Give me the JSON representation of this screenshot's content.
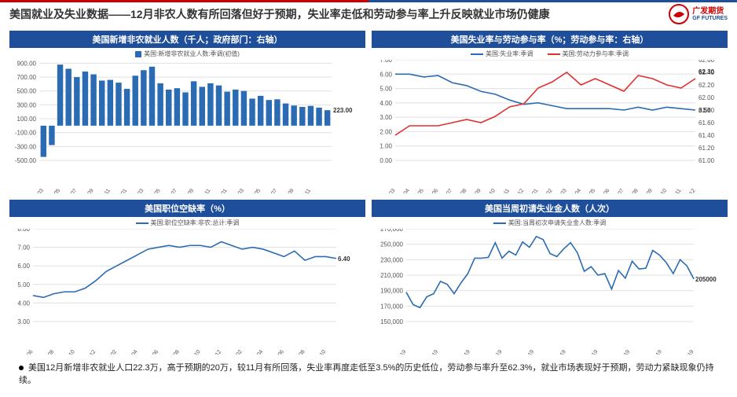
{
  "header": {
    "title": "美国就业及失业数据——12月非农人数有所回落但好于预期，失业率走低和劳动参与率上升反映就业市场仍健康",
    "logo_cn": "广发期货",
    "logo_en": "GF FUTURES"
  },
  "colors": {
    "accent_red": "#c00000",
    "accent_blue": "#1f4e9b",
    "series_blue": "#2b6bb3",
    "series_red": "#e03030",
    "grid": "#e0e0e0",
    "bg": "#ffffff"
  },
  "chart1": {
    "title": "美国新增非农就业人数（千人；政府部门：右轴）",
    "type": "bar",
    "legend": "美国:新增非农就业人数:季调(初值)",
    "ylim": [
      -500,
      950
    ],
    "ytick_step": 200,
    "categories": [
      "2020-03",
      "2020-05",
      "2020-07",
      "2020-09",
      "2020-11",
      "2021-01",
      "2021-03",
      "2021-05",
      "2021-07",
      "2021-09",
      "2021-11",
      "2022-01",
      "2022-03",
      "2022-05",
      "2022-07",
      "2022-09",
      "2022-11"
    ],
    "xshow": [
      0,
      1,
      2,
      3,
      4,
      5,
      6,
      7,
      8,
      9,
      10,
      11,
      12,
      13,
      14,
      15,
      16
    ],
    "values": [
      -450,
      -280,
      880,
      820,
      700,
      780,
      740,
      650,
      660,
      620,
      530,
      720,
      800,
      850,
      610,
      520,
      540,
      480,
      640,
      560,
      610,
      580,
      490,
      520,
      500,
      390,
      430,
      370,
      380,
      320,
      290,
      270,
      285,
      260,
      223
    ],
    "callout": "223.00",
    "bar_color": "#2b6bb3"
  },
  "chart2": {
    "title": "美国失业率与劳动参与率（%；劳动参与率：右轴）",
    "type": "line-dual",
    "legend1": "美国:失业率:季调",
    "legend2": "美国:劳动力参与率:季调",
    "yL": {
      "lim": [
        0,
        7
      ],
      "step": 1
    },
    "yR": {
      "lim": [
        61.0,
        62.6
      ],
      "step": 0.2
    },
    "categories": [
      "2021-03",
      "2021-04",
      "2021-05",
      "2021-06",
      "2021-07",
      "2021-08",
      "2021-09",
      "2021-10",
      "2021-11",
      "2021-12",
      "2022-01",
      "2022-02",
      "2022-03",
      "2022-04",
      "2022-05",
      "2022-06",
      "2022-07",
      "2022-08",
      "2022-09",
      "2022-10",
      "2022-11",
      "2022-12"
    ],
    "s1": [
      6.0,
      6.0,
      5.8,
      5.9,
      5.4,
      5.2,
      4.8,
      4.6,
      4.2,
      3.9,
      4.0,
      3.8,
      3.6,
      3.6,
      3.6,
      3.6,
      3.5,
      3.7,
      3.5,
      3.7,
      3.6,
      3.5
    ],
    "s2": [
      61.4,
      61.55,
      61.55,
      61.55,
      61.6,
      61.65,
      61.6,
      61.7,
      61.85,
      61.9,
      62.15,
      62.25,
      62.4,
      62.2,
      62.3,
      62.2,
      62.1,
      62.35,
      62.3,
      62.2,
      62.15,
      62.3
    ],
    "callout1": "3.50",
    "callout2": "62.30",
    "c1": "#2b6bb3",
    "c2": "#e03030"
  },
  "chart3": {
    "title": "美国职位空缺率（%）",
    "type": "line",
    "legend": "美国:职位空缺率:非农:总计:季调",
    "ylim": [
      3,
      8
    ],
    "ytick_step": 1,
    "categories": [
      "2020-06",
      "2020-08",
      "2020-10",
      "2020-12",
      "2021-02",
      "2021-04",
      "2021-06",
      "2021-08",
      "2021-10",
      "2021-12",
      "2022-02",
      "2022-04",
      "2022-06",
      "2022-08",
      "2022-10"
    ],
    "values": [
      4.4,
      4.3,
      4.5,
      4.6,
      4.6,
      4.8,
      5.2,
      5.7,
      6.0,
      6.3,
      6.6,
      6.9,
      7.0,
      7.1,
      7.0,
      7.1,
      7.1,
      7.0,
      7.3,
      7.1,
      6.9,
      7.0,
      6.9,
      6.7,
      6.5,
      6.8,
      6.3,
      6.5,
      6.5,
      6.4
    ],
    "callout": "6.40",
    "color": "#2b6bb3"
  },
  "chart4": {
    "title": "美国当周初请失业金人数（人次）",
    "type": "line",
    "legend": "美国:当周初次申请失业金人数:季调",
    "ylim": [
      150000,
      270000
    ],
    "ytick_step": 20000,
    "categories": [
      "2022-03-19",
      "2022-04-19",
      "2022-05-19",
      "2022-06-19",
      "2022-07-19",
      "2022-08-19",
      "2022-09-19",
      "2022-10-19",
      "2022-11-19",
      "2022-12-19"
    ],
    "values": [
      188000,
      172000,
      168000,
      182000,
      186000,
      202000,
      198000,
      186000,
      200000,
      212000,
      232000,
      232000,
      233000,
      252000,
      232000,
      241000,
      236000,
      253000,
      246000,
      260000,
      256000,
      238000,
      234000,
      244000,
      252000,
      239000,
      215000,
      221000,
      210000,
      212000,
      192000,
      216000,
      206000,
      228000,
      218000,
      219000,
      242000,
      236000,
      226000,
      212000,
      230000,
      222000,
      205000
    ],
    "callout": "205000",
    "color": "#2b6bb3"
  },
  "footer": {
    "text": "美国12月新增非农就业人口22.3万，高于预期的20万，较11月有所回落，失业率再度走低至3.5%的历史低位，劳动参与率升至62.3%，就业市场表现好于预期，劳动力紧缺现象仍持续。"
  }
}
